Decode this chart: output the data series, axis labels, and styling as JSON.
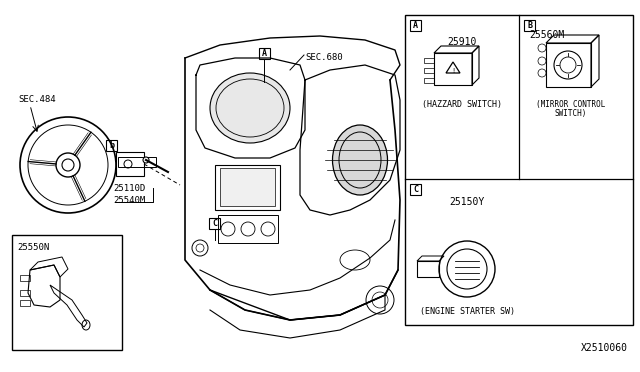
{
  "bg_color": "#ffffff",
  "line_color": "#000000",
  "text_color": "#000000",
  "fig_width": 6.4,
  "fig_height": 3.72,
  "dpi": 100,
  "diagram_code": "X2510060",
  "font_name": "DejaVu Sans",
  "parts": {
    "SEC484": "SEC.484",
    "SEC680": "SEC.680",
    "part_25110D": "25110D",
    "part_25540M": "25540M",
    "part_25550N": "25550N",
    "part_A_num": "25910",
    "part_A_label": "(HAZZARD SWITCH)",
    "part_B_num": "25560M",
    "part_B_label1": "(MIRROR CONTROL",
    "part_B_label2": "SWITCH)",
    "part_C_num": "25150Y",
    "part_C_label": "(ENGINE STARTER SW)"
  }
}
